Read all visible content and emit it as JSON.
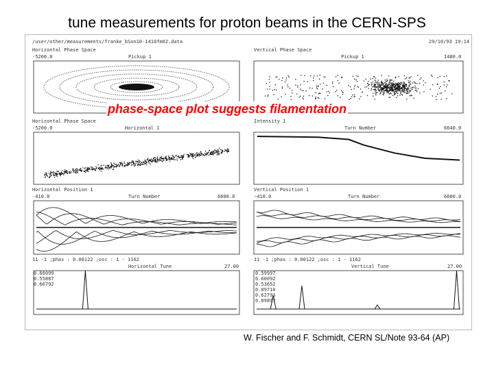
{
  "slide": {
    "title": "tune measurements for proton beams in the CERN-SPS",
    "annotation": "phase-space plot suggests filamentation",
    "citation": "W. Fischer and F. Schmidt, CERN SL/Note 93-64 (AP)"
  },
  "scan": {
    "file_path": "/user/other/measurements/franke_bSon10-1410fm02.data",
    "date": "29/10/93 19:14",
    "panels": [
      {
        "id": "h-phase-1",
        "title": "Horizontal Phase Space",
        "label": "Pickup 1",
        "xmin": "-5200.0",
        "xmax": ""
      },
      {
        "id": "v-phase-1",
        "title": "Vertical Phase Space",
        "label": "Pickup 1",
        "xmin": "",
        "xmax": "1480.0"
      },
      {
        "id": "h-phase-2",
        "title": "Horizontal Phase Space",
        "label": "Horizontal 1",
        "xmin": "-5200.0",
        "xmax": ""
      },
      {
        "id": "intensity",
        "title": "Intensity 1",
        "label": "Turn Number",
        "xmin": "",
        "xmax": "6640.0"
      },
      {
        "id": "h-position",
        "title": "Horizontal Position 1",
        "label": "Turn Number",
        "xmin": "-410.0",
        "xmax": "6600.0"
      },
      {
        "id": "v-position",
        "title": "Vertical Position 1",
        "label": "Turn Number",
        "xmin": "-410.0",
        "xmax": "6600.0"
      },
      {
        "id": "h-tune",
        "title": "Horizontal Tune",
        "label": "",
        "xmin": "",
        "xmax": "27.00"
      },
      {
        "id": "v-tune",
        "title": "Vertical Tune",
        "label": "",
        "xmin": "",
        "xmax": "27.00"
      }
    ],
    "h_tune_header": "11 -1 ;phas : 0.00122 ;osc : 1 - 1162",
    "v_tune_header": "11 -1 ;phas : 0.00122 ;osc : 1 - 1162",
    "h_tune_peaks": [
      "0.66099",
      "0.55887",
      "0.66792"
    ],
    "v_tune_peaks": [
      "0.59997",
      "0.60092",
      "0.53652",
      "0.89710",
      "0.62793",
      "0.89897"
    ]
  },
  "chart_data": [
    {
      "type": "scatter",
      "title": "Horizontal Phase Space",
      "xlabel": "Pickup 1",
      "description_values": {
        "x_min": -5200.0
      }
    },
    {
      "type": "scatter",
      "title": "Vertical Phase Space",
      "xlabel": "Pickup 1",
      "description_values": {
        "x_max": 1480.0
      }
    },
    {
      "type": "scatter",
      "title": "Horizontal Phase Space",
      "xlabel": "Horizontal 1",
      "description_values": {
        "x_min": -5200.0
      }
    },
    {
      "type": "line",
      "title": "Intensity 1",
      "xlabel": "Turn Number",
      "x": [
        0,
        1000,
        2000,
        3000,
        3500,
        4500,
        5500,
        6640
      ],
      "y": [
        1.0,
        0.99,
        0.98,
        0.93,
        0.8,
        0.62,
        0.5,
        0.46
      ]
    },
    {
      "type": "line",
      "title": "Horizontal Position 1",
      "xlabel": "Turn Number",
      "xlim": [
        -410.0,
        6600.0
      ]
    },
    {
      "type": "line",
      "title": "Vertical Position 1",
      "xlabel": "Turn Number",
      "xlim": [
        -410.0,
        6600.0
      ]
    },
    {
      "type": "line",
      "title": "Horizontal Tune",
      "xlim": [
        0,
        27.0
      ],
      "peaks_x": [
        6.6
      ]
    },
    {
      "type": "line",
      "title": "Vertical Tune",
      "xlim": [
        0,
        27.0
      ],
      "peaks_x": [
        2.2,
        6.0,
        16.0,
        26.5
      ]
    }
  ]
}
